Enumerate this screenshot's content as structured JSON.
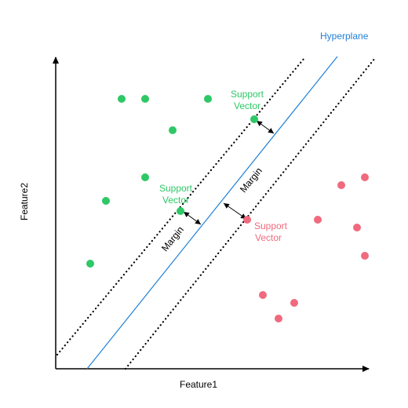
{
  "axes": {
    "x_label": "Feature1",
    "y_label": "Feature2"
  },
  "hyperplane": {
    "label": "Hyperplane",
    "color": "#1f7fd6"
  },
  "margins": {
    "upper_label": "Margin",
    "lower_label": "Margin"
  },
  "support_vectors": {
    "green_line1": "Support",
    "green_line2": "Vector",
    "red_line1": "Support",
    "red_line2": "Vector"
  },
  "classes": {
    "green_color": "#2ec866",
    "red_color": "#f06a7e"
  }
}
